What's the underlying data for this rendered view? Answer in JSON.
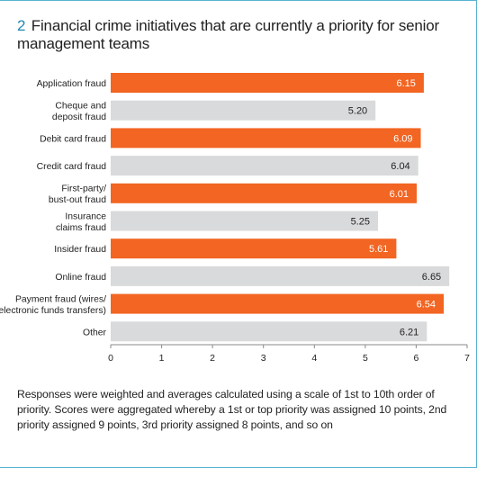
{
  "figure": {
    "number": "2",
    "title": "Financial crime initiatives that are currently a priority for senior management teams",
    "caption": "Responses were weighted and averages calculated using a scale of 1st to 10th order of priority. Scores were aggregated whereby a 1st or top priority was assigned 10 points, 2nd priority assigned 9 points, 3rd priority assigned 8 points, and so on"
  },
  "chart_data": {
    "type": "bar",
    "orientation": "horizontal",
    "title": "Financial crime initiatives that are currently a priority for senior management teams",
    "xlabel": "",
    "ylabel": "",
    "xlim": [
      0,
      7
    ],
    "x_ticks": [
      "0",
      "1",
      "2",
      "3",
      "4",
      "5",
      "6",
      "7"
    ],
    "grid": false,
    "colors": {
      "highlight": "#f26522",
      "neutral": "#d9dadb",
      "highlight_label": "#ffffff",
      "neutral_label": "#222222"
    },
    "categories": [
      "Application fraud",
      "Cheque and deposit fraud",
      "Debit card fraud",
      "Credit card fraud",
      "First-party/ bust-out fraud",
      "Insurance claims fraud",
      "Insider fraud",
      "Online fraud",
      "Payment fraud (wires/ electronic funds transfers)",
      "Other"
    ],
    "category_lines": [
      [
        "Application fraud"
      ],
      [
        "Cheque and",
        "deposit fraud"
      ],
      [
        "Debit card fraud"
      ],
      [
        "Credit card fraud"
      ],
      [
        "First-party/",
        "bust-out fraud"
      ],
      [
        "Insurance",
        "claims fraud"
      ],
      [
        "Insider fraud"
      ],
      [
        "Online fraud"
      ],
      [
        "Payment fraud (wires/",
        "electronic funds transfers)"
      ],
      [
        "Other"
      ]
    ],
    "values": [
      6.15,
      5.2,
      6.09,
      6.04,
      6.01,
      5.25,
      5.61,
      6.65,
      6.54,
      6.21
    ],
    "value_labels": [
      "6.15",
      "5.20",
      "6.09",
      "6.04",
      "6.01",
      "5.25",
      "5.61",
      "6.65",
      "6.54",
      "6.21"
    ],
    "highlight": [
      true,
      false,
      true,
      false,
      true,
      false,
      true,
      false,
      true,
      false
    ]
  }
}
